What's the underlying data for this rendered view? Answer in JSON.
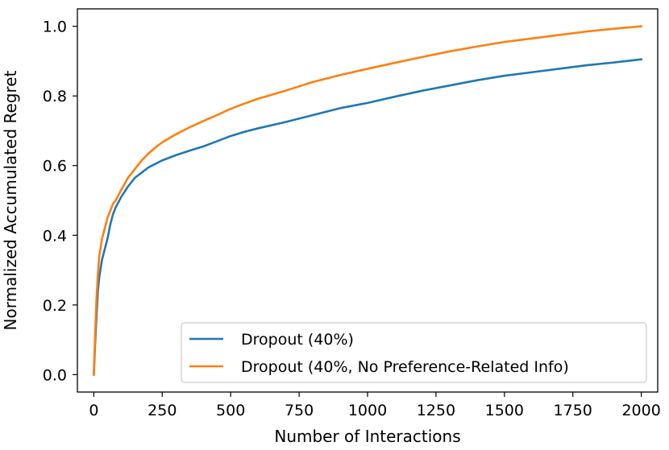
{
  "chart_data": {
    "type": "line",
    "title": "",
    "xlabel": "Number of Interactions",
    "ylabel": "Normalized Accumulated Regret",
    "xlim": [
      -60,
      2060
    ],
    "ylim": [
      -0.05,
      1.05
    ],
    "x_ticks": [
      0,
      250,
      500,
      750,
      1000,
      1250,
      1500,
      1750,
      2000
    ],
    "x_tick_labels": [
      "0",
      "250",
      "500",
      "750",
      "1000",
      "1250",
      "1500",
      "1750",
      "2000"
    ],
    "y_ticks": [
      0.0,
      0.2,
      0.4,
      0.6,
      0.8,
      1.0
    ],
    "y_tick_labels": [
      "0.0",
      "0.2",
      "0.4",
      "0.6",
      "0.8",
      "1.0"
    ],
    "grid": false,
    "legend_position": "lower-right",
    "series": [
      {
        "name": "Dropout (40%)",
        "color": "#1f77b4",
        "x": [
          0,
          5,
          10,
          15,
          20,
          30,
          40,
          50,
          60,
          70,
          80,
          100,
          125,
          150,
          175,
          200,
          225,
          250,
          300,
          350,
          400,
          450,
          500,
          550,
          600,
          700,
          800,
          900,
          1000,
          1100,
          1200,
          1300,
          1400,
          1500,
          1600,
          1700,
          1800,
          1900,
          2000
        ],
        "y": [
          0.0,
          0.09,
          0.17,
          0.24,
          0.28,
          0.33,
          0.36,
          0.39,
          0.43,
          0.46,
          0.48,
          0.51,
          0.54,
          0.565,
          0.58,
          0.595,
          0.605,
          0.615,
          0.63,
          0.643,
          0.655,
          0.67,
          0.685,
          0.697,
          0.707,
          0.725,
          0.745,
          0.765,
          0.78,
          0.798,
          0.815,
          0.83,
          0.845,
          0.858,
          0.868,
          0.878,
          0.888,
          0.896,
          0.905
        ]
      },
      {
        "name": "Dropout (40%, No Preference-Related Info)",
        "color": "#ff7f0e",
        "x": [
          0,
          5,
          10,
          15,
          20,
          30,
          40,
          50,
          60,
          70,
          80,
          100,
          125,
          150,
          175,
          200,
          225,
          250,
          300,
          350,
          400,
          450,
          500,
          550,
          600,
          700,
          800,
          900,
          1000,
          1100,
          1200,
          1300,
          1400,
          1500,
          1600,
          1700,
          1800,
          1900,
          2000
        ],
        "y": [
          0.0,
          0.12,
          0.22,
          0.29,
          0.34,
          0.39,
          0.42,
          0.45,
          0.47,
          0.49,
          0.5,
          0.53,
          0.565,
          0.59,
          0.615,
          0.635,
          0.652,
          0.667,
          0.69,
          0.71,
          0.728,
          0.745,
          0.763,
          0.778,
          0.792,
          0.815,
          0.84,
          0.86,
          0.878,
          0.895,
          0.912,
          0.928,
          0.942,
          0.955,
          0.965,
          0.975,
          0.985,
          0.993,
          1.0
        ]
      }
    ]
  }
}
